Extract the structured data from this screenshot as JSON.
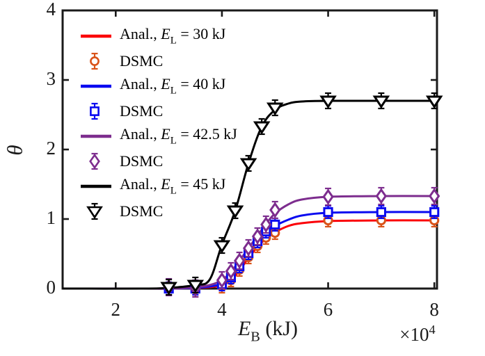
{
  "figure": {
    "background": "#ffffff",
    "axes_color": "#1a1a1a",
    "text_color": "#1a1a1a"
  },
  "axis": {
    "xlabel_parts": [
      [
        "E",
        "i"
      ],
      [
        "B",
        "sub"
      ],
      [
        " (kJ)",
        "n"
      ]
    ],
    "x_multiplier_parts": [
      [
        "×10",
        "n"
      ],
      [
        "4",
        "sup"
      ]
    ],
    "ylabel_parts": [
      [
        "θ",
        "i"
      ]
    ],
    "xtick_labels": [
      "2",
      "4",
      "6",
      "8"
    ],
    "ytick_labels": [
      "0",
      "1",
      "2",
      "3",
      "4"
    ]
  },
  "legend": {
    "items": [
      {
        "sample": "line",
        "color": "#fb0007",
        "label_parts": [
          [
            "Anal., ",
            "n"
          ],
          [
            "E",
            "i"
          ],
          [
            "L",
            "sub"
          ],
          [
            " = 30 kJ",
            "n"
          ]
        ]
      },
      {
        "sample": "circle",
        "color": "#d95319",
        "label_parts": [
          [
            "DSMC",
            "n"
          ]
        ]
      },
      {
        "sample": "line",
        "color": "#0a0af0",
        "label_parts": [
          [
            "Anal., ",
            "n"
          ],
          [
            "E",
            "i"
          ],
          [
            "L",
            "sub"
          ],
          [
            " = 40 kJ",
            "n"
          ]
        ]
      },
      {
        "sample": "square",
        "color": "#0a0af0",
        "label_parts": [
          [
            "DSMC",
            "n"
          ]
        ]
      },
      {
        "sample": "line",
        "color": "#7d2d8e",
        "label_parts": [
          [
            "Anal., ",
            "n"
          ],
          [
            "E",
            "i"
          ],
          [
            "L",
            "sub"
          ],
          [
            " = 42.5 kJ",
            "n"
          ]
        ]
      },
      {
        "sample": "diamond",
        "color": "#7d2d8e",
        "label_parts": [
          [
            "DSMC",
            "n"
          ]
        ]
      },
      {
        "sample": "line",
        "color": "#000000",
        "label_parts": [
          [
            "Anal., ",
            "n"
          ],
          [
            "E",
            "i"
          ],
          [
            "L",
            "sub"
          ],
          [
            " = 45 kJ",
            "n"
          ]
        ]
      },
      {
        "sample": "triangle-down",
        "color": "#000000",
        "label_parts": [
          [
            "DSMC",
            "n"
          ]
        ]
      }
    ]
  },
  "chart_data": {
    "type": "line",
    "title": "",
    "xlabel": "E_B (kJ)",
    "x_multiplier": "×10^4",
    "ylabel": "θ",
    "xlim": [
      1.0,
      8.05
    ],
    "ylim": [
      0,
      4
    ],
    "xticks": [
      2,
      4,
      6,
      8
    ],
    "yticks": [
      0,
      1,
      2,
      3,
      4
    ],
    "grid": false,
    "legend_position": "upper-left-inside",
    "series": [
      {
        "name": "Anal., E_L = 30 kJ",
        "kind": "line",
        "color": "#fb0007",
        "linewidth": 3,
        "x": [
          1.0,
          2.5,
          3.0,
          3.5,
          3.77,
          4.0,
          4.17,
          4.33,
          4.5,
          4.67,
          4.83,
          5.0,
          5.25,
          5.5,
          6.0,
          7.0,
          8.05
        ],
        "y": [
          0,
          0,
          0,
          0.01,
          0.02,
          0.05,
          0.12,
          0.26,
          0.44,
          0.6,
          0.72,
          0.81,
          0.9,
          0.94,
          0.97,
          0.98,
          0.98
        ]
      },
      {
        "name": "DSMC",
        "group": "E_L = 30 kJ",
        "kind": "scatter",
        "marker": "circle",
        "color": "#d95319",
        "error": 0.09,
        "x": [
          3.0,
          3.5,
          4.0,
          4.17,
          4.33,
          4.5,
          4.67,
          4.83,
          5.0,
          6.0,
          7.0,
          8.0
        ],
        "y": [
          0,
          0,
          0.03,
          0.12,
          0.27,
          0.45,
          0.61,
          0.73,
          0.8,
          0.98,
          0.98,
          0.98
        ]
      },
      {
        "name": "Anal., E_L = 40 kJ",
        "kind": "line",
        "color": "#0a0af0",
        "linewidth": 3,
        "x": [
          1.0,
          2.5,
          3.0,
          3.5,
          3.77,
          4.0,
          4.17,
          4.33,
          4.5,
          4.67,
          4.83,
          5.0,
          5.25,
          5.5,
          6.0,
          7.0,
          8.05
        ],
        "y": [
          0,
          0,
          0,
          0.01,
          0.03,
          0.07,
          0.16,
          0.31,
          0.5,
          0.67,
          0.8,
          0.9,
          0.99,
          1.05,
          1.09,
          1.1,
          1.1
        ]
      },
      {
        "name": "DSMC",
        "group": "E_L = 40 kJ",
        "kind": "scatter",
        "marker": "square",
        "color": "#0a0af0",
        "error": 0.09,
        "x": [
          3.0,
          3.5,
          4.0,
          4.17,
          4.33,
          4.5,
          4.67,
          4.83,
          5.0,
          6.0,
          7.0,
          8.0
        ],
        "y": [
          0,
          0,
          0.06,
          0.16,
          0.32,
          0.51,
          0.68,
          0.82,
          0.92,
          1.1,
          1.1,
          1.1
        ]
      },
      {
        "name": "Anal., E_L = 42.5 kJ",
        "kind": "line",
        "color": "#7d2d8e",
        "linewidth": 3,
        "x": [
          1.0,
          2.5,
          3.0,
          3.5,
          3.77,
          4.0,
          4.17,
          4.33,
          4.5,
          4.67,
          4.83,
          5.0,
          5.25,
          5.5,
          6.0,
          7.0,
          8.05
        ],
        "y": [
          0,
          0,
          0,
          0.02,
          0.05,
          0.12,
          0.24,
          0.4,
          0.58,
          0.76,
          0.93,
          1.08,
          1.21,
          1.28,
          1.32,
          1.33,
          1.33
        ]
      },
      {
        "name": "DSMC",
        "group": "E_L = 42.5 kJ",
        "kind": "scatter",
        "marker": "diamond",
        "color": "#7d2d8e",
        "error": 0.12,
        "x": [
          3.0,
          3.5,
          4.0,
          4.17,
          4.33,
          4.5,
          4.67,
          4.83,
          5.0,
          6.0,
          7.0,
          8.0
        ],
        "y": [
          0.02,
          0,
          0.12,
          0.25,
          0.4,
          0.58,
          0.75,
          0.92,
          1.13,
          1.32,
          1.33,
          1.33
        ]
      },
      {
        "name": "Anal., E_L = 45 kJ",
        "kind": "line",
        "color": "#000000",
        "linewidth": 3,
        "x": [
          1.0,
          2.5,
          3.0,
          3.5,
          3.77,
          4.0,
          4.25,
          4.5,
          4.75,
          5.0,
          5.25,
          5.5,
          6.0,
          7.0,
          8.05
        ],
        "y": [
          0,
          0,
          0.01,
          0.05,
          0.13,
          0.63,
          1.12,
          1.8,
          2.33,
          2.57,
          2.66,
          2.69,
          2.7,
          2.7,
          2.7
        ]
      },
      {
        "name": "DSMC",
        "group": "E_L = 45 kJ",
        "kind": "scatter",
        "marker": "triangle-down",
        "color": "#000000",
        "error": 0.11,
        "x": [
          3.0,
          3.5,
          4.0,
          4.25,
          4.5,
          4.75,
          5.0,
          6.0,
          7.0,
          8.0
        ],
        "y": [
          0.02,
          0.05,
          0.62,
          1.12,
          1.8,
          2.33,
          2.6,
          2.7,
          2.7,
          2.7
        ]
      }
    ]
  }
}
